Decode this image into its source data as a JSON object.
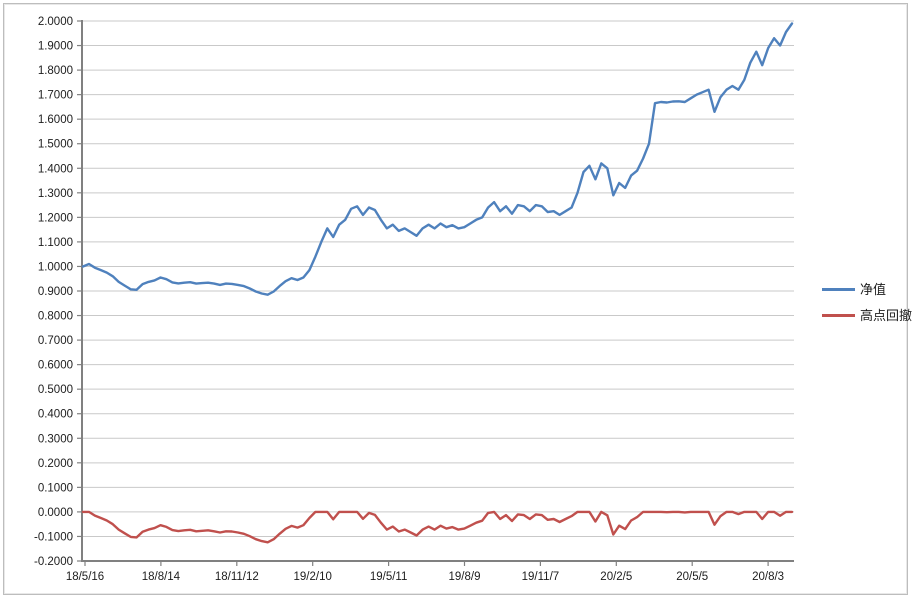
{
  "chart_data": {
    "type": "line",
    "title": "",
    "xlabel": "",
    "ylabel": "",
    "ylim": [
      -0.2,
      2.0
    ],
    "y_tick_step": 0.1,
    "grid": true,
    "legend_position": "right",
    "y_tick_labels": [
      "2.0000",
      "1.9000",
      "1.8000",
      "1.7000",
      "1.6000",
      "1.5000",
      "1.4000",
      "1.3000",
      "1.2000",
      "1.1000",
      "1.0000",
      "0.9000",
      "0.8000",
      "0.7000",
      "0.6000",
      "0.5000",
      "0.4000",
      "0.3000",
      "0.2000",
      "0.1000",
      "0.0000",
      "-0.1000",
      "-0.2000"
    ],
    "x_tick_labels": [
      "18/5/16",
      "18/8/14",
      "18/11/12",
      "19/2/10",
      "19/5/11",
      "19/8/9",
      "19/11/7",
      "20/2/5",
      "20/5/5",
      "20/8/3"
    ],
    "axis_color": "#808080",
    "gridline_color": "#c9c9c9",
    "label_color": "#1d1d1d",
    "series": [
      {
        "name": "净值",
        "color": "#4f81bd",
        "values": [
          1.0,
          1.01,
          0.995,
          0.985,
          0.975,
          0.96,
          0.937,
          0.922,
          0.907,
          0.905,
          0.928,
          0.937,
          0.943,
          0.955,
          0.948,
          0.935,
          0.931,
          0.934,
          0.936,
          0.93,
          0.932,
          0.934,
          0.93,
          0.925,
          0.93,
          0.929,
          0.925,
          0.92,
          0.91,
          0.898,
          0.89,
          0.885,
          0.898,
          0.92,
          0.94,
          0.952,
          0.945,
          0.955,
          0.985,
          1.04,
          1.1,
          1.155,
          1.12,
          1.17,
          1.19,
          1.235,
          1.245,
          1.21,
          1.24,
          1.23,
          1.19,
          1.155,
          1.17,
          1.145,
          1.155,
          1.14,
          1.125,
          1.155,
          1.17,
          1.155,
          1.175,
          1.16,
          1.168,
          1.155,
          1.16,
          1.175,
          1.19,
          1.2,
          1.24,
          1.262,
          1.225,
          1.245,
          1.215,
          1.25,
          1.245,
          1.225,
          1.25,
          1.245,
          1.222,
          1.225,
          1.21,
          1.225,
          1.24,
          1.3,
          1.385,
          1.41,
          1.355,
          1.42,
          1.4,
          1.29,
          1.34,
          1.32,
          1.37,
          1.39,
          1.44,
          1.5,
          1.665,
          1.67,
          1.668,
          1.672,
          1.673,
          1.67,
          1.685,
          1.7,
          1.71,
          1.72,
          1.63,
          1.69,
          1.72,
          1.735,
          1.72,
          1.76,
          1.83,
          1.875,
          1.82,
          1.89,
          1.93,
          1.9,
          1.955,
          1.99
        ]
      },
      {
        "name": "高点回撤",
        "color": "#c0504d",
        "values": [
          0,
          0,
          -0.015,
          -0.025,
          -0.035,
          -0.05,
          -0.072,
          -0.087,
          -0.102,
          -0.104,
          -0.081,
          -0.072,
          -0.066,
          -0.054,
          -0.061,
          -0.074,
          -0.078,
          -0.075,
          -0.073,
          -0.079,
          -0.077,
          -0.075,
          -0.079,
          -0.084,
          -0.079,
          -0.08,
          -0.084,
          -0.089,
          -0.099,
          -0.111,
          -0.119,
          -0.124,
          -0.111,
          -0.089,
          -0.069,
          -0.057,
          -0.064,
          -0.054,
          -0.025,
          0,
          0,
          0,
          -0.03,
          0,
          0,
          0,
          0,
          -0.028,
          -0.004,
          -0.012,
          -0.044,
          -0.072,
          -0.06,
          -0.08,
          -0.072,
          -0.084,
          -0.096,
          -0.072,
          -0.06,
          -0.072,
          -0.056,
          -0.068,
          -0.062,
          -0.072,
          -0.068,
          -0.056,
          -0.044,
          -0.036,
          -0.004,
          0,
          -0.029,
          -0.013,
          -0.037,
          -0.01,
          -0.013,
          -0.029,
          -0.01,
          -0.013,
          -0.032,
          -0.029,
          -0.041,
          -0.029,
          -0.017,
          0,
          0,
          0,
          -0.039,
          0,
          -0.014,
          -0.092,
          -0.056,
          -0.07,
          -0.035,
          -0.021,
          0,
          0,
          0,
          0,
          -0.001,
          0,
          0,
          -0.002,
          0,
          0,
          0,
          0,
          -0.052,
          -0.017,
          0,
          0,
          -0.009,
          0,
          0,
          0,
          -0.029,
          0,
          0,
          -0.016,
          0,
          0
        ]
      }
    ]
  }
}
